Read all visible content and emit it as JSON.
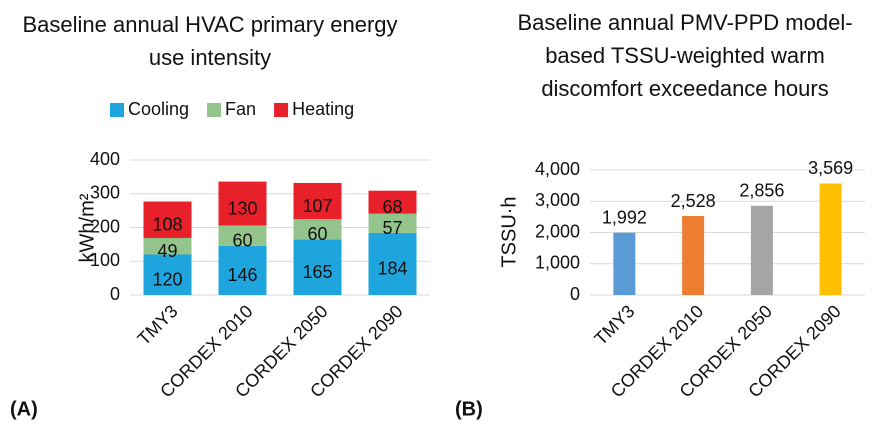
{
  "chart_data": [
    {
      "type": "stacked_bar",
      "title": "Baseline annual HVAC primary energy use intensity",
      "panel_label": "(A)",
      "y_label": "kWh/m²",
      "categories": [
        "TMY3",
        "CORDEX 2010",
        "CORDEX 2050",
        "CORDEX 2090"
      ],
      "series": [
        {
          "name": "Cooling",
          "color": "#1ea5de",
          "values": [
            120,
            146,
            165,
            184
          ]
        },
        {
          "name": "Fan",
          "color": "#93c48b",
          "values": [
            49,
            60,
            60,
            57
          ]
        },
        {
          "name": "Heating",
          "color": "#e8202a",
          "values": [
            108,
            130,
            107,
            68
          ]
        }
      ],
      "ylim": [
        0,
        400
      ],
      "yticks": [
        0,
        100,
        200,
        300,
        400
      ],
      "grid": true,
      "legend": "top"
    },
    {
      "type": "bar",
      "title": "Baseline annual PMV-PPD model-based TSSU-weighted warm discomfort exceedance hours",
      "panel_label": "(B)",
      "y_label": "TSSU·h",
      "categories": [
        "TMY3",
        "CORDEX 2010",
        "CORDEX 2050",
        "CORDEX 2090"
      ],
      "values": [
        1992,
        2528,
        2856,
        3569
      ],
      "value_labels": [
        "1,992",
        "2,528",
        "2,856",
        "3,569"
      ],
      "colors": [
        "#5b9bd5",
        "#ed7d31",
        "#a5a5a5",
        "#ffc000"
      ],
      "ylim": [
        0,
        4000
      ],
      "yticks": [
        0,
        {
          "value": 1000,
          "label": "1,000"
        },
        {
          "value": 2000,
          "label": "2,000"
        },
        {
          "value": 3000,
          "label": "3,000"
        },
        {
          "value": 4000,
          "label": "4,000"
        }
      ],
      "grid": true
    }
  ]
}
